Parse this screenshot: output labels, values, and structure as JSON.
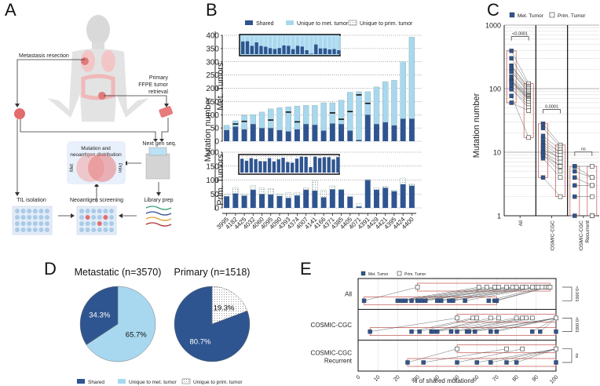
{
  "panels": {
    "A": {
      "letter": "A",
      "labels": {
        "metastasis_resection": "Metastasis resection",
        "primary_line1": "Primary",
        "primary_line2": "FFPE tumor",
        "primary_line3": "retrieval",
        "next_gen_seq": "Next gen seq.",
        "mutation_dist_line1": "Mutation and",
        "mutation_dist_line2": "neoantigen distribution",
        "venn_met": "Met",
        "venn_prim": "Prim",
        "til_isolation": "TIL isolation",
        "neoantigen_screening": "Neoantigen screening",
        "library_prep": "Library prep"
      }
    },
    "B": {
      "letter": "B"
    },
    "C": {
      "letter": "C"
    },
    "D": {
      "letter": "D"
    },
    "E": {
      "letter": "E"
    }
  },
  "colors": {
    "shared": "#2f5590",
    "unique_met": "#a8d8ef",
    "unique_prim": "#ffffff",
    "grid": "#888888",
    "box_red": "#c0504d"
  },
  "chart_data": [
    {
      "id": "B",
      "type": "bar",
      "stacked": true,
      "legend": [
        "Shared",
        "Unique to met. tumor",
        "Unique to prim. tumor"
      ],
      "legend_position": "top",
      "ylabel": "Mutation number",
      "categories": [
        "3995",
        "4182",
        "4425",
        "4032",
        "4060",
        "4095",
        "4090",
        "4393",
        "4374",
        "4007",
        "4141",
        "4166",
        "4371",
        "4385",
        "4405",
        "4071",
        "4391",
        "4429",
        "4421",
        "4395",
        "4424",
        "4400"
      ],
      "subplots": [
        {
          "name": "Met. Tumors",
          "ylim": [
            0,
            400
          ],
          "yticks": [
            0,
            50,
            100,
            150,
            200,
            250,
            300,
            350,
            400
          ],
          "series": [
            {
              "name": "Shared",
              "values": [
                42,
                55,
                45,
                65,
                50,
                50,
                42,
                37,
                45,
                65,
                62,
                40,
                67,
                65,
                40,
                5,
                100,
                65,
                72,
                60,
                85,
                85
              ]
            },
            {
              "name": "Unique to met. tumor",
              "values": [
                18,
                22,
                53,
                35,
                60,
                72,
                85,
                93,
                88,
                70,
                73,
                105,
                78,
                90,
                145,
                182,
                87,
                140,
                153,
                170,
                215,
                308
              ]
            }
          ],
          "marker_line": [
            null,
            65,
            75,
            null,
            null,
            80,
            null,
            110,
            73,
            null,
            null,
            null,
            107,
            83,
            112,
            175,
            143,
            null,
            null,
            null,
            null,
            null
          ]
        },
        {
          "name": "Prim. Tumors",
          "ylim": [
            0,
            200
          ],
          "yticks": [
            0,
            50,
            100,
            150,
            200
          ],
          "series": [
            {
              "name": "Shared",
              "values": [
                42,
                52,
                44,
                65,
                50,
                48,
                43,
                36,
                45,
                65,
                62,
                38,
                67,
                65,
                40,
                5,
                100,
                65,
                72,
                60,
                85,
                80
              ]
            },
            {
              "name": "Unique to prim. tumor",
              "values": [
                8,
                20,
                6,
                15,
                22,
                22,
                6,
                18,
                11,
                7,
                35,
                25,
                12,
                2,
                2,
                10,
                3,
                8,
                5,
                4,
                22,
                5
              ]
            }
          ]
        }
      ]
    },
    {
      "id": "C",
      "type": "scatter",
      "legend": [
        "Met. Tumor",
        "Prim. Tumor"
      ],
      "legend_position": "top",
      "ylabel": "Mutation number",
      "yscale": "log",
      "ylim": [
        1,
        1000
      ],
      "yticks": [
        1,
        10,
        100,
        1000
      ],
      "groups": [
        "All",
        "COSMIC-CGC",
        "COSMIC-CGC Recurrent"
      ],
      "pvalues": [
        "<0.0001",
        "0.0001",
        "ns"
      ],
      "met_values": [
        [
          393,
          300,
          230,
          225,
          205,
          187,
          185,
          155,
          145,
          135,
          133,
          130,
          127,
          122,
          110,
          100,
          98,
          77,
          60
        ],
        [
          28,
          24,
          18,
          16,
          14,
          13,
          12,
          11,
          10,
          10,
          9,
          9,
          8,
          4
        ],
        [
          6,
          6,
          5,
          4,
          3,
          2,
          1
        ]
      ],
      "prim_values": [
        [
          120,
          110,
          105,
          100,
          95,
          90,
          85,
          80,
          78,
          75,
          72,
          70,
          68,
          65,
          60,
          55,
          50,
          17,
          45
        ],
        [
          13,
          12,
          11,
          10,
          10,
          9,
          8,
          8,
          7,
          6,
          6,
          5,
          4,
          2
        ],
        [
          6,
          4,
          4,
          3,
          3,
          2,
          1,
          1
        ]
      ]
    },
    {
      "id": "D",
      "type": "pie",
      "legend": [
        "Shared",
        "Unique to met. tumor",
        "Unique to prim. tumor"
      ],
      "legend_position": "bottom",
      "pies": [
        {
          "title": "Metastatic (n=3570)",
          "slices": [
            {
              "label": "Shared",
              "value": 34.3,
              "text": "34.3%"
            },
            {
              "label": "Unique to met. tumor",
              "value": 65.7,
              "text": "65.7%"
            }
          ]
        },
        {
          "title": "Primary (n=1518)",
          "slices": [
            {
              "label": "Shared",
              "value": 80.7,
              "text": "80.7%"
            },
            {
              "label": "Unique to prim. tumor",
              "value": 19.3,
              "text": "19.3%"
            }
          ]
        }
      ]
    },
    {
      "id": "E",
      "type": "scatter",
      "legend": [
        "Met. Tumor",
        "Prim. Tumor"
      ],
      "legend_position": "top-left",
      "xlabel": "% of shared mutations",
      "xlim": [
        0,
        100
      ],
      "xticks": [
        0,
        10,
        20,
        30,
        40,
        50,
        60,
        70,
        80,
        90,
        100
      ],
      "rows": [
        {
          "label": "All",
          "label2": "",
          "pvalue": "<0.0001",
          "prim": [
            30,
            61,
            65,
            69,
            71,
            75,
            78,
            80,
            83,
            85,
            88,
            90,
            91,
            93,
            95,
            96,
            97
          ],
          "met": [
            3,
            20,
            22,
            24,
            27,
            30,
            32,
            34,
            40,
            42,
            46,
            48,
            54,
            66,
            69,
            70
          ]
        },
        {
          "label": "COSMIC-CGC",
          "label2": "",
          "pvalue": "<0.0001",
          "prim": [
            50,
            58,
            60,
            67,
            71,
            80,
            83,
            85,
            88,
            100
          ],
          "met": [
            6,
            27,
            31,
            37,
            38,
            40,
            47,
            50,
            55,
            56,
            59,
            67,
            70,
            88,
            92,
            100
          ]
        },
        {
          "label": "COSMIC-CGC",
          "label2": "Recurrent",
          "pvalue": "ns",
          "prim": [
            50,
            75,
            83,
            100
          ],
          "met": [
            25,
            33,
            50,
            60,
            67,
            75,
            80,
            100
          ]
        }
      ]
    }
  ]
}
